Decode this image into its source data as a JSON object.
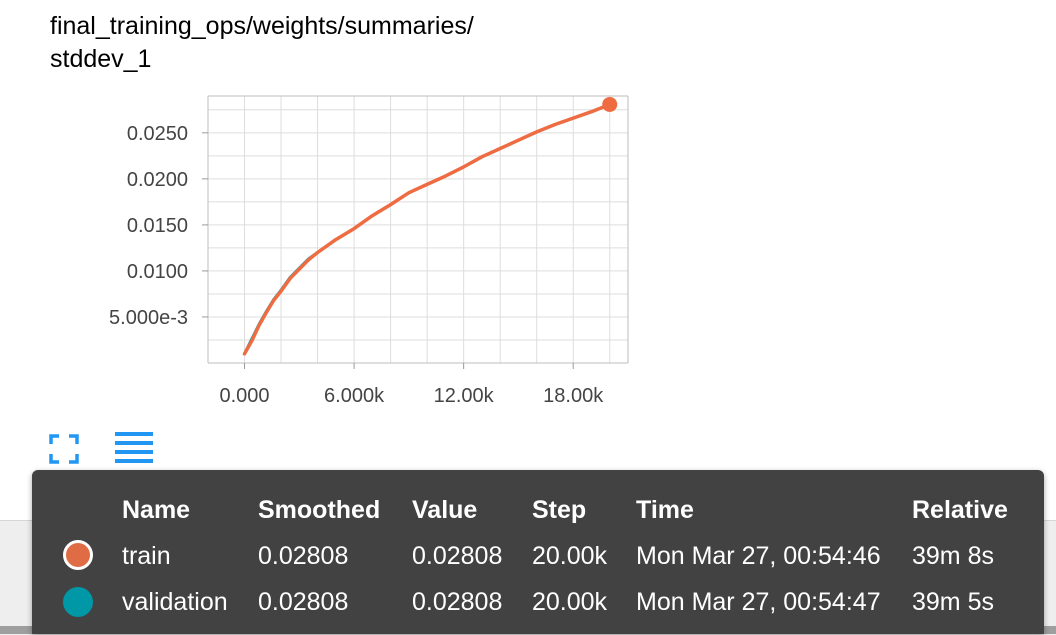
{
  "card": {
    "title": "final_training_ops/weights/summaries/\nstddev_1"
  },
  "chart_data": {
    "type": "line",
    "title": "final_training_ops/weights/summaries/stddev_1",
    "xlabel": "",
    "ylabel": "",
    "xlim": [
      -2000,
      21000
    ],
    "ylim": [
      0,
      0.029
    ],
    "x_ticks": [
      0,
      6000,
      12000,
      18000
    ],
    "x_tick_labels": [
      "0.000",
      "6.000k",
      "12.00k",
      "18.00k"
    ],
    "y_ticks": [
      0.005,
      0.01,
      0.015,
      0.02,
      0.025
    ],
    "y_tick_labels": [
      "5.000e-3",
      "0.0100",
      "0.0150",
      "0.0200",
      "0.0250"
    ],
    "grid": true,
    "series": [
      {
        "name": "validation",
        "color": "#0097a7",
        "x": [
          0,
          400,
          800,
          1200,
          1600,
          2000,
          2500,
          3000,
          3500,
          4000,
          5000,
          6000,
          7000,
          8000,
          9000,
          10000,
          11000,
          12000,
          13000,
          14000,
          15000,
          16000,
          17000,
          18000,
          19000,
          20000
        ],
        "y": [
          0.001,
          0.0026,
          0.0042,
          0.0056,
          0.0069,
          0.0079,
          0.0093,
          0.0103,
          0.0113,
          0.012,
          0.0134,
          0.0146,
          0.016,
          0.0172,
          0.0185,
          0.0194,
          0.0203,
          0.0213,
          0.0224,
          0.0233,
          0.0242,
          0.0251,
          0.0259,
          0.0266,
          0.0273,
          0.02808
        ]
      },
      {
        "name": "train",
        "color": "#ef6c42",
        "x": [
          0,
          400,
          800,
          1200,
          1600,
          2000,
          2500,
          3000,
          3500,
          4000,
          5000,
          6000,
          7000,
          8000,
          9000,
          10000,
          11000,
          12000,
          13000,
          14000,
          15000,
          16000,
          17000,
          18000,
          19000,
          20000
        ],
        "y": [
          0.001,
          0.0024,
          0.0041,
          0.0055,
          0.0068,
          0.0078,
          0.0092,
          0.0102,
          0.0112,
          0.012,
          0.0134,
          0.0146,
          0.016,
          0.0172,
          0.0185,
          0.0194,
          0.0203,
          0.0213,
          0.0224,
          0.0233,
          0.0242,
          0.0251,
          0.0259,
          0.0266,
          0.0273,
          0.02808
        ]
      }
    ],
    "highlight_point": {
      "x": 20000,
      "y": 0.02808,
      "series": "train"
    }
  },
  "tooltip": {
    "headers": {
      "name": "Name",
      "smoothed": "Smoothed",
      "value": "Value",
      "step": "Step",
      "time": "Time",
      "relative": "Relative"
    },
    "rows": [
      {
        "color": "#e06c45",
        "name": "train",
        "smoothed": "0.02808",
        "value": "0.02808",
        "step": "20.00k",
        "time": "Mon Mar 27, 00:54:46",
        "relative": "39m 8s"
      },
      {
        "color": "#0097a7",
        "name": "validation",
        "smoothed": "0.02808",
        "value": "0.02808",
        "step": "20.00k",
        "time": "Mon Mar 27, 00:54:47",
        "relative": "39m 5s"
      }
    ]
  },
  "controls": {
    "expand_icon": "fullscreen-icon",
    "menu_icon": "hamburger-menu-icon",
    "accent": "#2196f3"
  }
}
